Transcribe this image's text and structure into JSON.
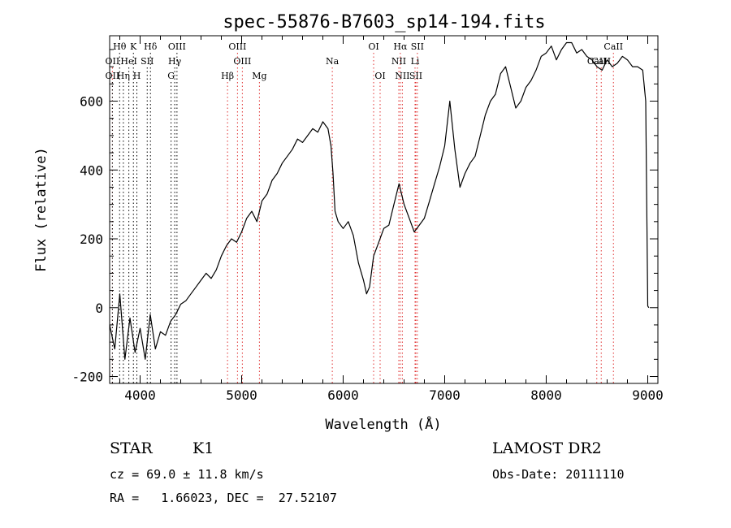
{
  "chart_data": {
    "type": "line",
    "title": "spec-55876-B7603_sp14-194.fits",
    "xlabel": "Wavelength (Å)",
    "ylabel": "Flux (relative)",
    "xlim": [
      3700,
      9100
    ],
    "ylim": [
      -220,
      790
    ],
    "xticks": [
      4000,
      5000,
      6000,
      7000,
      8000,
      9000
    ],
    "yticks": [
      -200,
      0,
      200,
      400,
      600
    ],
    "grid": false,
    "series": [
      {
        "values": [
          [
            3700,
            -50
          ],
          [
            3750,
            -120
          ],
          [
            3800,
            40
          ],
          [
            3850,
            -150
          ],
          [
            3900,
            -30
          ],
          [
            3950,
            -130
          ],
          [
            4000,
            -60
          ],
          [
            4050,
            -150
          ],
          [
            4100,
            -20
          ],
          [
            4150,
            -120
          ],
          [
            4200,
            -70
          ],
          [
            4250,
            -80
          ],
          [
            4300,
            -40
          ],
          [
            4350,
            -20
          ],
          [
            4400,
            10
          ],
          [
            4450,
            20
          ],
          [
            4500,
            40
          ],
          [
            4550,
            60
          ],
          [
            4600,
            80
          ],
          [
            4650,
            100
          ],
          [
            4700,
            85
          ],
          [
            4750,
            110
          ],
          [
            4800,
            150
          ],
          [
            4850,
            180
          ],
          [
            4900,
            200
          ],
          [
            4950,
            190
          ],
          [
            5000,
            220
          ],
          [
            5050,
            260
          ],
          [
            5100,
            280
          ],
          [
            5150,
            250
          ],
          [
            5200,
            310
          ],
          [
            5250,
            330
          ],
          [
            5300,
            370
          ],
          [
            5350,
            390
          ],
          [
            5400,
            420
          ],
          [
            5450,
            440
          ],
          [
            5500,
            460
          ],
          [
            5550,
            490
          ],
          [
            5600,
            480
          ],
          [
            5650,
            500
          ],
          [
            5700,
            520
          ],
          [
            5750,
            510
          ],
          [
            5800,
            540
          ],
          [
            5850,
            520
          ],
          [
            5880,
            470
          ],
          [
            5900,
            390
          ],
          [
            5920,
            280
          ],
          [
            5950,
            250
          ],
          [
            6000,
            230
          ],
          [
            6050,
            250
          ],
          [
            6100,
            210
          ],
          [
            6150,
            130
          ],
          [
            6200,
            80
          ],
          [
            6230,
            40
          ],
          [
            6260,
            60
          ],
          [
            6300,
            150
          ],
          [
            6350,
            190
          ],
          [
            6400,
            230
          ],
          [
            6450,
            240
          ],
          [
            6500,
            300
          ],
          [
            6550,
            360
          ],
          [
            6600,
            300
          ],
          [
            6650,
            260
          ],
          [
            6700,
            220
          ],
          [
            6750,
            240
          ],
          [
            6800,
            260
          ],
          [
            6850,
            310
          ],
          [
            6900,
            360
          ],
          [
            6950,
            410
          ],
          [
            7000,
            470
          ],
          [
            7050,
            600
          ],
          [
            7100,
            460
          ],
          [
            7150,
            350
          ],
          [
            7200,
            390
          ],
          [
            7250,
            420
          ],
          [
            7300,
            440
          ],
          [
            7350,
            500
          ],
          [
            7400,
            560
          ],
          [
            7450,
            600
          ],
          [
            7500,
            620
          ],
          [
            7550,
            680
          ],
          [
            7600,
            700
          ],
          [
            7650,
            640
          ],
          [
            7700,
            580
          ],
          [
            7750,
            600
          ],
          [
            7800,
            640
          ],
          [
            7850,
            660
          ],
          [
            7900,
            690
          ],
          [
            7950,
            730
          ],
          [
            8000,
            740
          ],
          [
            8050,
            760
          ],
          [
            8100,
            720
          ],
          [
            8150,
            750
          ],
          [
            8200,
            770
          ],
          [
            8250,
            770
          ],
          [
            8300,
            740
          ],
          [
            8350,
            750
          ],
          [
            8400,
            730
          ],
          [
            8450,
            720
          ],
          [
            8500,
            700
          ],
          [
            8550,
            690
          ],
          [
            8600,
            720
          ],
          [
            8650,
            700
          ],
          [
            8700,
            710
          ],
          [
            8750,
            730
          ],
          [
            8800,
            720
          ],
          [
            8850,
            700
          ],
          [
            8900,
            700
          ],
          [
            8950,
            690
          ],
          [
            8980,
            600
          ],
          [
            9000,
            5
          ],
          [
            9010,
            0
          ]
        ]
      }
    ],
    "lines": [
      {
        "label": "Hθ",
        "x": 3798,
        "row": 0,
        "color": "#000000"
      },
      {
        "label": "K",
        "x": 3934,
        "row": 0,
        "color": "#000000"
      },
      {
        "label": "Hδ",
        "x": 4102,
        "row": 0,
        "color": "#000000"
      },
      {
        "label": "OIII",
        "x": 4363,
        "row": 0,
        "color": "#000000"
      },
      {
        "label": "OIII",
        "x": 4959,
        "row": 0,
        "color": "#e03030"
      },
      {
        "label": "OI",
        "x": 6300,
        "row": 0,
        "color": "#e03030"
      },
      {
        "label": "Hα",
        "x": 6563,
        "row": 0,
        "color": "#e03030"
      },
      {
        "label": "SII",
        "x": 6731,
        "row": 0,
        "color": "#e03030"
      },
      {
        "label": "CaII",
        "x": 8662,
        "row": 0,
        "color": "#e03030"
      },
      {
        "label": "OII",
        "x": 3727,
        "row": 1,
        "color": "#e03030"
      },
      {
        "label": "HeI",
        "x": 3889,
        "row": 1,
        "color": "#000000"
      },
      {
        "label": "SII",
        "x": 4070,
        "row": 1,
        "color": "#000000"
      },
      {
        "label": "Hγ",
        "x": 4341,
        "row": 1,
        "color": "#000000"
      },
      {
        "label": "OIII",
        "x": 5007,
        "row": 1,
        "color": "#e03030"
      },
      {
        "label": "Na",
        "x": 5893,
        "row": 1,
        "color": "#e03030"
      },
      {
        "label": "NII",
        "x": 6548,
        "row": 1,
        "color": "#e03030"
      },
      {
        "label": "Li",
        "x": 6708,
        "row": 1,
        "color": "#e03030"
      },
      {
        "label": "CaII",
        "x": 8542,
        "row": 1,
        "color": "#e03030"
      },
      {
        "label": "CaII",
        "x": 8498,
        "row": 1,
        "color": "#e03030"
      },
      {
        "label": "OII",
        "x": 3727,
        "row": 2,
        "color": "#000000"
      },
      {
        "label": "Hη",
        "x": 3835,
        "row": 2,
        "color": "#000000"
      },
      {
        "label": "H",
        "x": 3968,
        "row": 2,
        "color": "#000000"
      },
      {
        "label": "G",
        "x": 4305,
        "row": 2,
        "color": "#000000"
      },
      {
        "label": "Hβ",
        "x": 4861,
        "row": 2,
        "color": "#e03030"
      },
      {
        "label": "Mg",
        "x": 5175,
        "row": 2,
        "color": "#e03030"
      },
      {
        "label": "OI",
        "x": 6364,
        "row": 2,
        "color": "#e03030"
      },
      {
        "label": "NII",
        "x": 6583,
        "row": 2,
        "color": "#e03030"
      },
      {
        "label": "SII",
        "x": 6716,
        "row": 2,
        "color": "#e03030"
      }
    ]
  },
  "info": {
    "object_class": "STAR",
    "subclass": "K1",
    "survey": "LAMOST DR2",
    "cz": "cz = 69.0 ± 11.8 km/s",
    "obs_date": "Obs-Date: 20111110",
    "coords": "RA =   1.66023, DEC =  27.52107"
  }
}
